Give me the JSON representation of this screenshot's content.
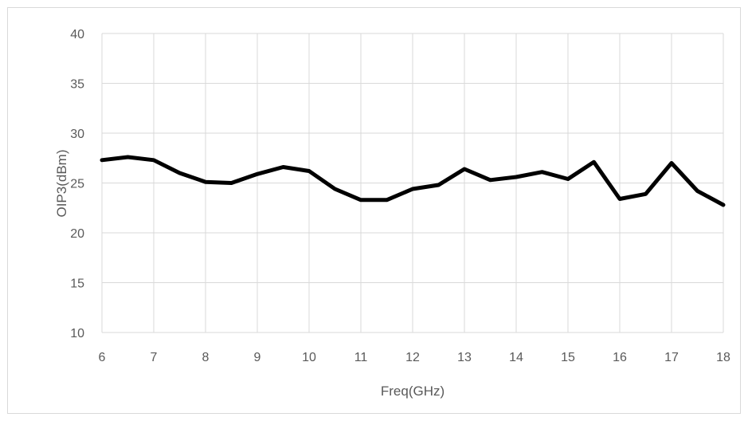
{
  "chart_data": {
    "type": "line",
    "title": "",
    "xlabel": "Freq(GHz)",
    "ylabel": "OIP3(dBm)",
    "xlim": [
      6,
      18
    ],
    "ylim": [
      10,
      40
    ],
    "x_ticks": [
      "6",
      "7",
      "8",
      "9",
      "10",
      "11",
      "12",
      "13",
      "14",
      "15",
      "16",
      "17",
      "18"
    ],
    "y_ticks": [
      "10",
      "15",
      "20",
      "25",
      "30",
      "35",
      "40"
    ],
    "grid": true,
    "legend": "none",
    "line_color": "#000000",
    "grid_color": "#d9d9d9",
    "series": [
      {
        "x": [
          6,
          6.5,
          7,
          7.5,
          8,
          8.5,
          9,
          9.5,
          10,
          10.5,
          11,
          11.5,
          12,
          12.5,
          13,
          13.5,
          14,
          14.5,
          15,
          15.5,
          16,
          16.5,
          17,
          17.5,
          18
        ],
        "values": [
          27.3,
          27.6,
          27.3,
          26.0,
          25.1,
          25.0,
          25.9,
          26.6,
          26.2,
          24.4,
          23.3,
          23.3,
          24.4,
          24.8,
          26.4,
          25.3,
          25.6,
          26.1,
          25.4,
          27.1,
          23.4,
          23.9,
          27.0,
          24.2,
          22.8
        ]
      }
    ]
  }
}
